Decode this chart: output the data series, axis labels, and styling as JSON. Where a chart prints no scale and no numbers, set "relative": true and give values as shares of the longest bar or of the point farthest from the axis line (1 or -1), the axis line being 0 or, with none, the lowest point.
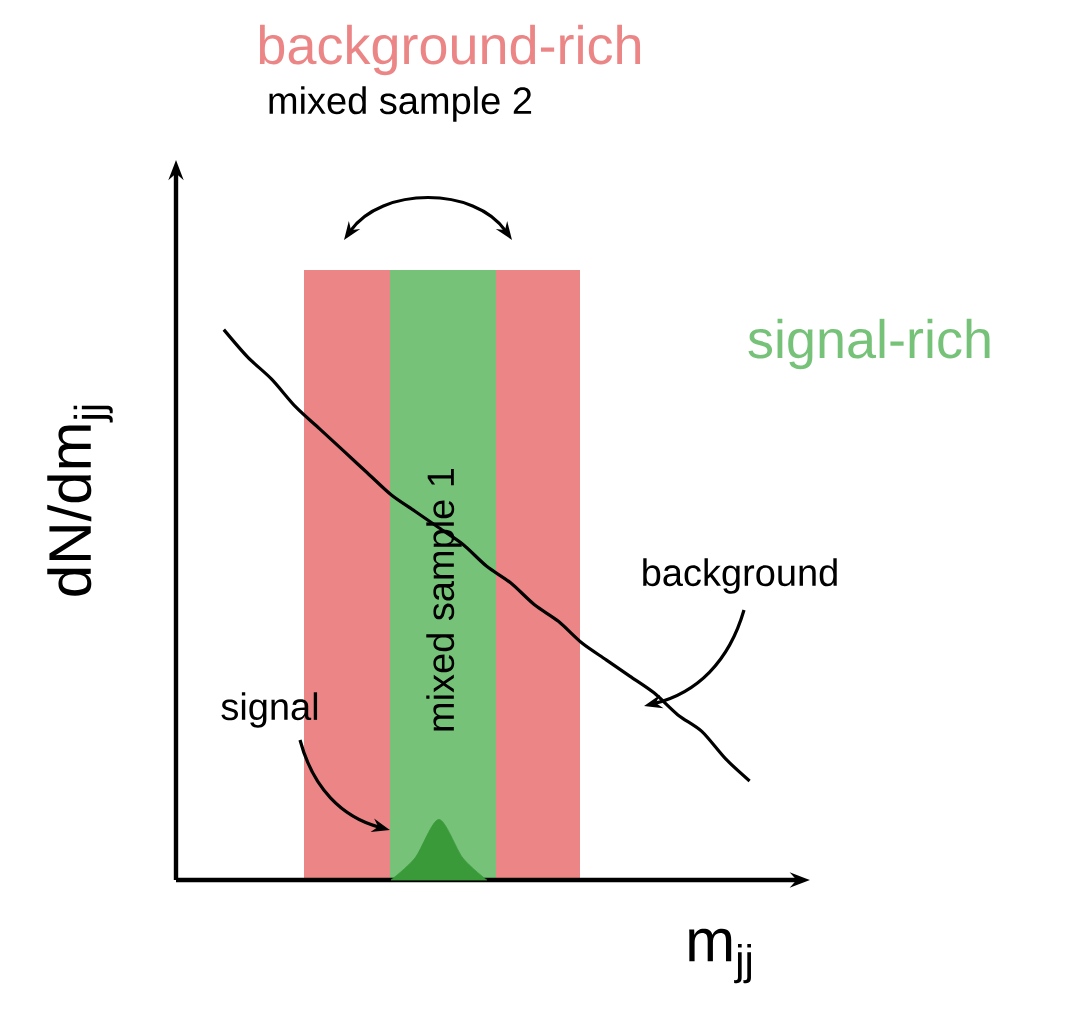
{
  "chart_data": {
    "type": "line",
    "relative": true,
    "title": "background-rich",
    "xlabel": "m$_{jj}$",
    "ylabel": "dN/dm$_{jj}$",
    "categories": [
      null,
      null,
      null,
      null,
      null,
      null,
      null,
      null,
      null,
      null,
      null,
      null,
      null,
      null,
      null,
      null,
      null,
      null,
      null,
      null,
      null,
      null,
      null
    ],
    "series": [
      {
        "color": "#000000",
        "values": [
          1.0,
          0.95,
          0.91,
          0.86,
          0.82,
          0.78,
          0.74,
          0.7,
          0.67,
          0.64,
          0.61,
          0.57,
          0.54,
          0.5,
          0.47,
          0.43,
          0.4,
          0.37,
          0.34,
          0.3,
          0.27,
          0.22,
          0.18
        ]
      },
      {
        "type": "area",
        "color": "#3a9a3a",
        "values": [
          null,
          null,
          null,
          null,
          null,
          null,
          null,
          0,
          0.04,
          0.11,
          0.04,
          0,
          null,
          null,
          null,
          null,
          null,
          null,
          null,
          null,
          null,
          null,
          null
        ]
      }
    ],
    "annotations": [
      "signal-rich",
      "mixed sample 2",
      "background",
      "signal",
      "mixed sample 1"
    ]
  }
}
